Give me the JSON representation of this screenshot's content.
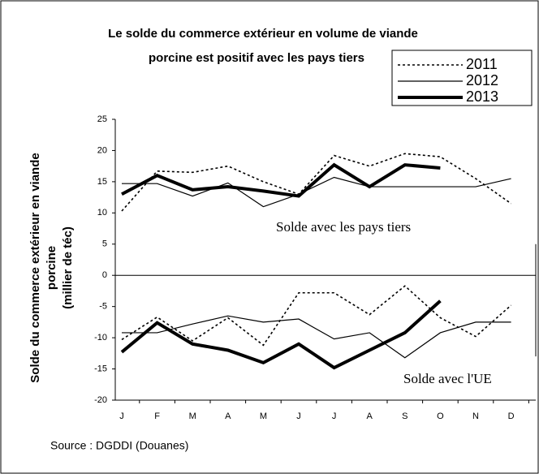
{
  "chart_data": {
    "type": "line",
    "title": [
      "Le solde du commerce extérieur en volume de viande",
      "porcine est positif avec les pays tiers"
    ],
    "y_label": [
      "Solde du commerce extérieur en viande",
      "porcine",
      "(millier de téc)"
    ],
    "source": "Source : DGDDI (Douanes)",
    "annotations": [
      "Solde avec les pays tiers",
      "Solde avec l'UE"
    ],
    "categories": [
      "J",
      "F",
      "M",
      "A",
      "M",
      "J",
      "J",
      "A",
      "S",
      "O",
      "N",
      "D"
    ],
    "series": [
      {
        "name": "2011",
        "color": "#000000",
        "dash": "3,3",
        "width": 1.6,
        "values_tiers": [
          10.3,
          16.7,
          16.5,
          17.5,
          15,
          13,
          19.2,
          17.5,
          19.5,
          19,
          15.5,
          11.5
        ],
        "values_ue": [
          -10.3,
          -6.7,
          -10.5,
          -6.8,
          -11.2,
          -2.8,
          -2.8,
          -6.3,
          -1.7,
          -6.8,
          -9.8,
          -4.8
        ]
      },
      {
        "name": "2012",
        "color": "#000000",
        "dash": "none",
        "width": 1.2,
        "values_tiers": [
          14.7,
          14.7,
          12.7,
          14.8,
          11,
          13,
          15.7,
          14.2,
          14.2,
          14.2,
          14.2,
          15.5
        ],
        "values_ue": [
          -9.2,
          -9.2,
          -7.8,
          -6.5,
          -7.5,
          -7,
          -10.2,
          -9.2,
          -13.2,
          -9.2,
          -7.5,
          -7.5
        ]
      },
      {
        "name": "2013",
        "color": "#000000",
        "dash": "none",
        "width": 4,
        "values_tiers": [
          13,
          16,
          13.7,
          14.2,
          13.5,
          12.7,
          17.7,
          14.2,
          17.7,
          17.2,
          null,
          null
        ],
        "values_ue": [
          -12.3,
          -7.6,
          -11,
          -12,
          -14,
          -11,
          -14.8,
          -12,
          -9.2,
          -4.1,
          null,
          null
        ]
      }
    ],
    "ylim": [
      -20,
      25
    ],
    "yticks": [
      -20,
      -15,
      -10,
      -5,
      0,
      5,
      10,
      15,
      20,
      25
    ]
  }
}
